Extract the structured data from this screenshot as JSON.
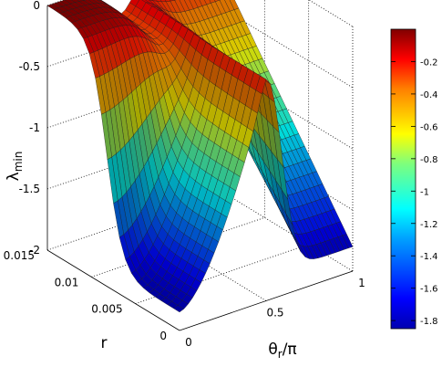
{
  "chart_data": {
    "type": "surface",
    "zlabel": {
      "main": "λ",
      "sub": "min"
    },
    "xlabel": {
      "main": "θ",
      "sub": "r",
      "tail": "/π"
    },
    "ylabel": "r",
    "x_ticks": [
      "0",
      "0.5",
      "1"
    ],
    "y_ticks": [
      "0",
      "0.005",
      "0.01",
      "0.015"
    ],
    "z_ticks": [
      "0",
      "-0.5",
      "-1",
      "-1.5",
      "-2"
    ],
    "colorbar_ticks": [
      "-0.2",
      "-0.4",
      "-0.6",
      "-0.8",
      "-1",
      "-1.2",
      "-1.4",
      "-1.6",
      "-1.8"
    ],
    "colormap": "jet",
    "colorbar_range": [
      -1.85,
      0
    ],
    "xlim": [
      0,
      1
    ],
    "ylim": [
      0,
      0.015
    ],
    "zlim": [
      -2,
      0
    ],
    "grid": true,
    "surface_description_values": {
      "z_at_theta0": -1.85,
      "plateau_z": 0,
      "ridge_theta": 0.5,
      "ridge_z": -0.18,
      "z_at_theta1_r0": -1.8,
      "z_at_theta1_r015": -0.2
    }
  }
}
